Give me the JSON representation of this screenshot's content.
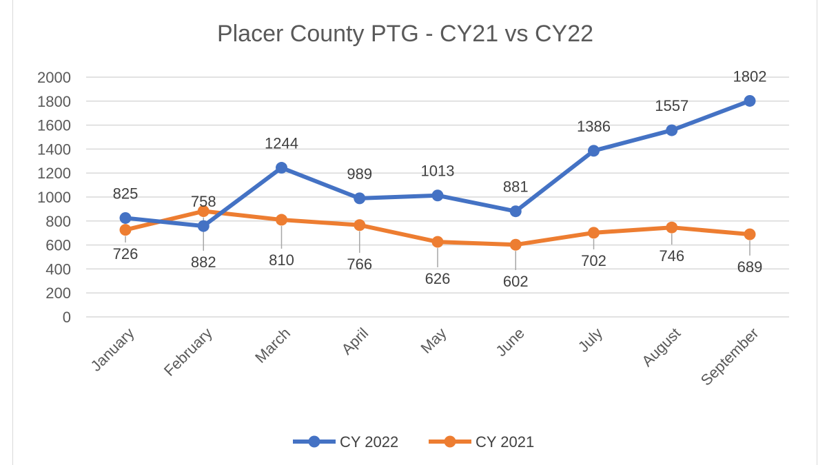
{
  "chart_data": {
    "type": "line",
    "title": "Placer County PTG - CY21 vs CY22",
    "xlabel": "",
    "ylabel": "",
    "categories": [
      "January",
      "February",
      "March",
      "April",
      "May",
      "June",
      "July",
      "August",
      "September"
    ],
    "ylim": [
      0,
      2000
    ],
    "yticks": [
      0,
      200,
      400,
      600,
      800,
      1000,
      1200,
      1400,
      1600,
      1800,
      2000
    ],
    "grid": true,
    "legend": "bottom",
    "series": [
      {
        "name": "CY 2022",
        "color": "#4472C4",
        "values": [
          825,
          758,
          1244,
          989,
          1013,
          881,
          1386,
          1557,
          1802
        ]
      },
      {
        "name": "CY 2021",
        "color": "#ED7D31",
        "values": [
          726,
          882,
          810,
          766,
          626,
          602,
          702,
          746,
          689
        ]
      }
    ]
  }
}
